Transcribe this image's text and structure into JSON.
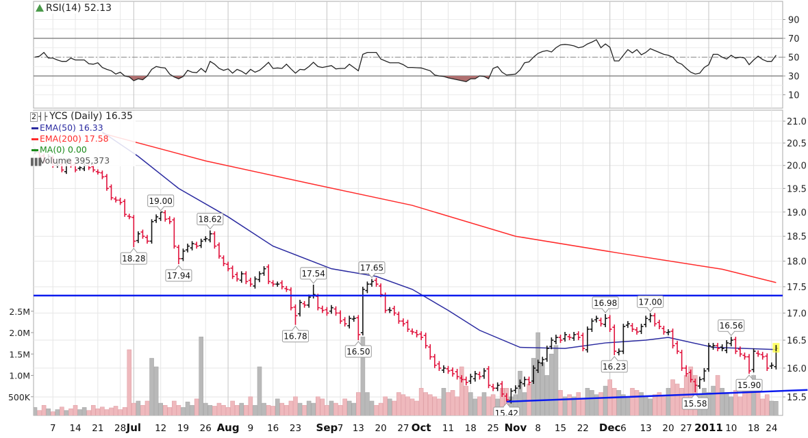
{
  "rsi_legend": {
    "label": "RSI(14) 52.13"
  },
  "main_legend": {
    "clipped_label": "2",
    "title": "YCS (Daily) 16.35",
    "ema50": "EMA(50) 16.33",
    "ema200": "EMA(200) 17.58",
    "ma0": "MA(0) 0.00",
    "volume": "Volume 395,373"
  },
  "colors": {
    "up": "#111111",
    "down": "#e0103a",
    "ema50": "#2a2aa0",
    "ema200": "#ff2a2a",
    "ma0": "#1a8a1a",
    "vol_up": "#b9b9b9",
    "vol_down": "#efb9bd",
    "trend": "#0a1aee",
    "rsi_fill": "#b07070",
    "highlight": "#ffff44"
  },
  "chart_data": [
    {
      "type": "line",
      "title": "RSI(14)",
      "ylim": [
        0,
        100
      ],
      "yticks": [
        "90",
        "70",
        "50",
        "30",
        "10"
      ],
      "ytick_values": [
        90,
        70,
        50,
        30,
        10
      ],
      "reference_lines": [
        70,
        30
      ],
      "midline": 50,
      "values": [
        50,
        51,
        55,
        49,
        49,
        47,
        45.5,
        45.5,
        49,
        47,
        47,
        47,
        43,
        42.5,
        44,
        39,
        37,
        35.5,
        32,
        34,
        30,
        29,
        25,
        27,
        26,
        30,
        37,
        40,
        39,
        38.5,
        32,
        29,
        27,
        29.5,
        36,
        34,
        33.5,
        38,
        34,
        45.5,
        42.5,
        38,
        36,
        37.5,
        33,
        37,
        35,
        32,
        37,
        34,
        36,
        40,
        44.5,
        38,
        38.5,
        38,
        42.5,
        37.5,
        33,
        37,
        36.5,
        40,
        44.5,
        40,
        39,
        40,
        41,
        37.5,
        38,
        38,
        42.5,
        39,
        35.5,
        53,
        55,
        55,
        55,
        48,
        46,
        44,
        44,
        44,
        42,
        39,
        39,
        38.7,
        38.5,
        37,
        35.5,
        31,
        30,
        29.5,
        28,
        27,
        26,
        25,
        24,
        27,
        27,
        30,
        29.5,
        27,
        38,
        40,
        34,
        31,
        31.5,
        32,
        36.5,
        44,
        45,
        50,
        54,
        56,
        57,
        55.5,
        60,
        63,
        63.5,
        63,
        62,
        60,
        61,
        64,
        66,
        68.5,
        60,
        64,
        60.5,
        46,
        46,
        52,
        58,
        54.5,
        58,
        52.5,
        55,
        59,
        57,
        55,
        53,
        52,
        50,
        44.5,
        42.5,
        38,
        34,
        32,
        33,
        39,
        42,
        53,
        53,
        50,
        48,
        52,
        49,
        50,
        49,
        42,
        47,
        51,
        47.5,
        45.5,
        45.5,
        52.13
      ]
    },
    {
      "type": "ohlc",
      "title": "YCS (Daily)",
      "scale": "log",
      "ylim": [
        15.5,
        21.0
      ],
      "yticks": [
        "21.0",
        "20.5",
        "20.0",
        "19.5",
        "19.0",
        "18.5",
        "18.0",
        "17.5",
        "17.0",
        "16.5",
        "16.0",
        "15.5"
      ],
      "ytick_values": [
        21.0,
        20.5,
        20.0,
        19.5,
        19.0,
        18.5,
        18.0,
        17.5,
        17.0,
        16.5,
        16.0,
        15.5
      ],
      "close": [
        20.3,
        20.2,
        20.1,
        20.2,
        20.0,
        20.0,
        19.9,
        20.1,
        20.0,
        19.9,
        19.95,
        20.0,
        19.95,
        19.9,
        19.85,
        19.75,
        19.5,
        19.3,
        19.25,
        19.2,
        18.95,
        18.9,
        18.4,
        18.55,
        18.5,
        18.4,
        18.8,
        18.9,
        19.0,
        18.85,
        18.8,
        18.3,
        18.05,
        18.2,
        18.3,
        18.35,
        18.3,
        18.4,
        18.45,
        18.55,
        18.3,
        18.1,
        17.95,
        17.85,
        17.7,
        17.65,
        17.75,
        17.6,
        17.55,
        17.65,
        17.75,
        17.85,
        17.6,
        17.55,
        17.55,
        17.5,
        17.45,
        17.1,
        16.95,
        17.2,
        17.15,
        17.3,
        17.35,
        17.1,
        17.05,
        17.0,
        17.1,
        17.0,
        16.85,
        16.8,
        16.9,
        16.9,
        16.6,
        17.45,
        17.55,
        17.6,
        17.55,
        17.35,
        17.05,
        17.05,
        17.0,
        16.85,
        16.8,
        16.7,
        16.65,
        16.6,
        16.55,
        16.4,
        16.2,
        16.05,
        16.0,
        16.0,
        15.95,
        15.9,
        15.85,
        15.8,
        15.75,
        15.85,
        15.9,
        15.85,
        15.95,
        15.7,
        15.65,
        15.7,
        15.55,
        15.45,
        15.6,
        15.65,
        15.75,
        15.8,
        15.75,
        16.0,
        16.1,
        16.15,
        16.35,
        16.5,
        16.55,
        16.5,
        16.6,
        16.55,
        16.6,
        16.55,
        16.35,
        16.7,
        16.85,
        16.9,
        16.8,
        16.9,
        16.7,
        16.3,
        16.3,
        16.75,
        16.8,
        16.7,
        16.65,
        16.75,
        16.9,
        16.95,
        16.8,
        16.75,
        16.65,
        16.65,
        16.4,
        16.3,
        16.0,
        15.9,
        15.8,
        15.7,
        15.8,
        15.95,
        16.4,
        16.4,
        16.35,
        16.35,
        16.45,
        16.5,
        16.3,
        16.25,
        16.2,
        15.95,
        16.3,
        16.25,
        16.2,
        16.0,
        16.05,
        16.35
      ],
      "annotations": [
        {
          "index": 22,
          "value": 18.28,
          "label": "18.28",
          "pos": "below"
        },
        {
          "index": 28,
          "value": 19.0,
          "label": "19.00",
          "pos": "above"
        },
        {
          "index": 32,
          "value": 17.94,
          "label": "17.94",
          "pos": "below"
        },
        {
          "index": 39,
          "value": 18.62,
          "label": "18.62",
          "pos": "above"
        },
        {
          "index": 58,
          "value": 16.78,
          "label": "16.78",
          "pos": "below"
        },
        {
          "index": 62,
          "value": 17.54,
          "label": "17.54",
          "pos": "above"
        },
        {
          "index": 72,
          "value": 16.5,
          "label": "16.50",
          "pos": "below"
        },
        {
          "index": 75,
          "value": 17.65,
          "label": "17.65",
          "pos": "above"
        },
        {
          "index": 105,
          "value": 15.42,
          "label": "15.42",
          "pos": "below"
        },
        {
          "index": 127,
          "value": 16.98,
          "label": "16.98",
          "pos": "above"
        },
        {
          "index": 129,
          "value": 16.23,
          "label": "16.23",
          "pos": "below"
        },
        {
          "index": 137,
          "value": 17.0,
          "label": "17.00",
          "pos": "above"
        },
        {
          "index": 147,
          "value": 15.58,
          "label": "15.58",
          "pos": "below"
        },
        {
          "index": 155,
          "value": 16.56,
          "label": "16.56",
          "pos": "above"
        },
        {
          "index": 159,
          "value": 15.9,
          "label": "15.90",
          "pos": "below"
        }
      ],
      "ema50": [
        [
          15,
          20.75
        ],
        [
          23,
          20.2
        ],
        [
          32,
          19.5
        ],
        [
          43,
          18.9
        ],
        [
          53,
          18.3
        ],
        [
          66,
          17.85
        ],
        [
          76,
          17.7
        ],
        [
          84,
          17.45
        ],
        [
          92,
          17.05
        ],
        [
          99,
          16.68
        ],
        [
          108,
          16.37
        ],
        [
          118,
          16.35
        ],
        [
          127,
          16.45
        ],
        [
          136,
          16.5
        ],
        [
          141,
          16.55
        ],
        [
          151,
          16.37
        ],
        [
          165,
          16.33
        ]
      ],
      "ema200": [
        [
          15,
          20.72
        ],
        [
          38,
          20.1
        ],
        [
          61,
          19.61
        ],
        [
          84,
          19.14
        ],
        [
          107,
          18.5
        ],
        [
          130,
          18.16
        ],
        [
          153,
          17.84
        ],
        [
          165,
          17.58
        ]
      ],
      "horizontal_line": 17.33,
      "trendline": [
        [
          105,
          15.42
        ],
        [
          172,
          15.62
        ]
      ]
    },
    {
      "type": "bar",
      "title": "Volume",
      "yticks": [
        "2.5M",
        "2.0M",
        "1.5M",
        "1.0M",
        "500K"
      ],
      "ytick_values_k": [
        2500,
        2000,
        1500,
        1000,
        500
      ],
      "values_k": [
        250,
        180,
        300,
        220,
        150,
        200,
        260,
        180,
        220,
        300,
        200,
        250,
        180,
        300,
        220,
        260,
        200,
        240,
        280,
        200,
        250,
        1600,
        350,
        400,
        300,
        400,
        1400,
        1200,
        350,
        300,
        250,
        400,
        300,
        250,
        380,
        300,
        450,
        1900,
        350,
        300,
        280,
        350,
        300,
        250,
        400,
        300,
        350,
        300,
        500,
        300,
        1200,
        350,
        300,
        280,
        450,
        350,
        300,
        400,
        500,
        350,
        300,
        400,
        350,
        500,
        450,
        300,
        400,
        350,
        300,
        450,
        400,
        350,
        600,
        1900,
        600,
        400,
        300,
        350,
        500,
        450,
        400,
        600,
        550,
        500,
        450,
        400,
        700,
        600,
        550,
        500,
        450,
        700,
        600,
        650,
        500,
        1200,
        750,
        600,
        450,
        500,
        600,
        500,
        550,
        450,
        700,
        700,
        500,
        550,
        1100,
        600,
        800,
        1400,
        2000,
        1300,
        1000,
        1500,
        1700,
        650,
        500,
        550,
        500,
        600,
        450,
        700,
        650,
        550,
        600,
        750,
        900,
        700,
        650,
        550,
        500,
        700,
        650,
        600,
        500,
        450,
        550,
        600,
        500,
        700,
        900,
        800,
        700,
        1000,
        1200,
        1000,
        550,
        700,
        600,
        750,
        1000,
        700,
        600,
        500,
        650,
        500,
        800,
        750,
        1000,
        600,
        450,
        550,
        400,
        395
      ]
    }
  ],
  "x_axis": {
    "labels": [
      {
        "index": 4,
        "text": "7"
      },
      {
        "index": 9,
        "text": "14"
      },
      {
        "index": 14,
        "text": "21"
      },
      {
        "index": 19,
        "text": "28"
      },
      {
        "index": 22,
        "text": "Jul",
        "month": true
      },
      {
        "index": 28,
        "text": "12"
      },
      {
        "index": 33,
        "text": "19"
      },
      {
        "index": 38,
        "text": "26"
      },
      {
        "index": 43,
        "text": "Aug",
        "month": true
      },
      {
        "index": 48,
        "text": "9"
      },
      {
        "index": 53,
        "text": "16"
      },
      {
        "index": 58,
        "text": "23"
      },
      {
        "index": 65,
        "text": "Sep",
        "month": true
      },
      {
        "index": 68,
        "text": "7"
      },
      {
        "index": 72,
        "text": "13"
      },
      {
        "index": 77,
        "text": "20"
      },
      {
        "index": 82,
        "text": "27"
      },
      {
        "index": 86,
        "text": "Oct",
        "month": true
      },
      {
        "index": 92,
        "text": "11"
      },
      {
        "index": 97,
        "text": "18"
      },
      {
        "index": 102,
        "text": "25"
      },
      {
        "index": 107,
        "text": "Nov",
        "month": true
      },
      {
        "index": 112,
        "text": "8"
      },
      {
        "index": 117,
        "text": "15"
      },
      {
        "index": 122,
        "text": "22"
      },
      {
        "index": 128,
        "text": "Dec",
        "month": true
      },
      {
        "index": 131,
        "text": "6"
      },
      {
        "index": 136,
        "text": "13"
      },
      {
        "index": 141,
        "text": "20"
      },
      {
        "index": 145,
        "text": "27"
      },
      {
        "index": 150,
        "text": "2011",
        "month": true
      },
      {
        "index": 155,
        "text": "10"
      },
      {
        "index": 160,
        "text": "18"
      },
      {
        "index": 164,
        "text": "24"
      }
    ]
  }
}
